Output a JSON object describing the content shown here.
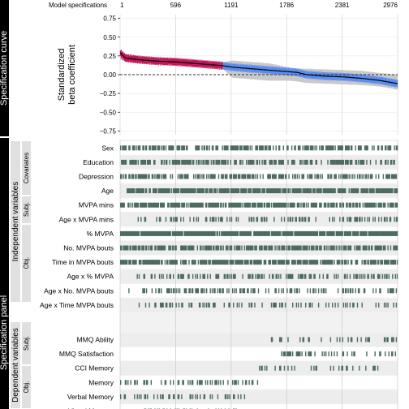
{
  "chart_data": [
    {
      "type": "line",
      "panel_label": "Specification curve",
      "ylabel_lines": [
        "Standardized",
        "beta coefficient"
      ],
      "xaxis_title": "Model specifications",
      "xlim": [
        1,
        2976
      ],
      "ylim": [
        -0.8,
        0.8
      ],
      "x_ticks": [
        1,
        596,
        1191,
        1786,
        2381,
        2976
      ],
      "y_ticks": [
        "0.75",
        "0.50",
        "0.25",
        "0.00",
        "−0.25",
        "−0.50",
        "−0.75"
      ],
      "y_tick_values": [
        0.75,
        0.5,
        0.25,
        0.0,
        -0.25,
        -0.5,
        -0.75
      ],
      "reference_line": 0,
      "reference_style": "dashed",
      "grid": true,
      "colors": {
        "significant_positive": "#c2185b",
        "non_significant": "#5b8def",
        "ci_band": "#bfbfbf",
        "line": "#000000"
      },
      "series": [
        {
          "x": [
            1,
            60,
            200,
            400,
            600,
            800,
            1000,
            1100,
            1200,
            1400,
            1600,
            1800,
            1900,
            2000,
            2200,
            2400,
            2600,
            2800,
            2976
          ],
          "y": [
            0.29,
            0.22,
            0.2,
            0.18,
            0.17,
            0.15,
            0.13,
            0.12,
            0.1,
            0.08,
            0.06,
            0.04,
            0.03,
            0.0,
            -0.02,
            -0.03,
            -0.05,
            -0.08,
            -0.12
          ],
          "ci_lower": [
            0.2,
            0.18,
            0.16,
            0.15,
            0.14,
            0.12,
            0.1,
            0.08,
            -0.04,
            -0.06,
            -0.08,
            -0.08,
            -0.09,
            -0.11,
            -0.12,
            -0.13,
            -0.14,
            -0.16,
            -0.2
          ],
          "ci_upper": [
            0.33,
            0.28,
            0.25,
            0.23,
            0.21,
            0.19,
            0.17,
            0.16,
            0.19,
            0.17,
            0.15,
            0.1,
            0.08,
            0.08,
            0.07,
            0.06,
            0.05,
            0.02,
            0.0
          ],
          "color_segments": [
            {
              "from": 1,
              "to": 1100,
              "status": "significant_positive"
            },
            {
              "from": 1100,
              "to": 2976,
              "status": "non_significant"
            }
          ]
        }
      ]
    },
    {
      "type": "heatmap",
      "panel_label": "Specification panel",
      "groups": [
        {
          "label": "Independent variables"
        },
        {
          "label": "Dependent variables"
        }
      ],
      "subgroups": [
        {
          "label": "Covariates"
        },
        {
          "label": "Subj."
        },
        {
          "label": "Obj."
        },
        {
          "label": "Subj."
        },
        {
          "label": "Obj."
        }
      ],
      "rows": [
        {
          "label": "Sex",
          "group": "Independent variables",
          "subgroup": "Covariates",
          "density": 0.55,
          "ranges": [
            [
              0,
              1
            ]
          ]
        },
        {
          "label": "Education",
          "group": "Independent variables",
          "subgroup": "Covariates",
          "density": 0.55,
          "ranges": [
            [
              0,
              1
            ]
          ]
        },
        {
          "label": "Depression",
          "group": "Independent variables",
          "subgroup": "Covariates",
          "density": 0.6,
          "ranges": [
            [
              0,
              1
            ]
          ]
        },
        {
          "label": "Age",
          "group": "Independent variables",
          "subgroup": "Covariates",
          "density": 0.85,
          "ranges": [
            [
              0.02,
              1
            ]
          ]
        },
        {
          "label": "MVPA mins",
          "group": "Independent variables",
          "subgroup": "Subj.",
          "density": 0.75,
          "ranges": [
            [
              0,
              1
            ]
          ]
        },
        {
          "label": "Age x MVPA mins",
          "group": "Independent variables",
          "subgroup": "Subj.",
          "density": 0.3,
          "ranges": [
            [
              0.05,
              1
            ]
          ]
        },
        {
          "label": "% MVPA",
          "group": "Independent variables",
          "subgroup": "Obj.",
          "density": 0.95,
          "ranges": [
            [
              0,
              1
            ]
          ]
        },
        {
          "label": "No. MVPA bouts",
          "group": "Independent variables",
          "subgroup": "Obj.",
          "density": 0.7,
          "ranges": [
            [
              0,
              1
            ]
          ]
        },
        {
          "label": "Time in MVPA bouts",
          "group": "Independent variables",
          "subgroup": "Obj.",
          "density": 0.75,
          "ranges": [
            [
              0,
              1
            ]
          ]
        },
        {
          "label": "Age x % MVPA",
          "group": "Independent variables",
          "subgroup": "Obj.",
          "density": 0.4,
          "ranges": [
            [
              0.05,
              1
            ]
          ]
        },
        {
          "label": "Age x No. MVPA bouts",
          "group": "Independent variables",
          "subgroup": "Obj.",
          "density": 0.4,
          "ranges": [
            [
              0.03,
              1
            ]
          ]
        },
        {
          "label": "Age x Time MVPA bouts",
          "group": "Independent variables",
          "subgroup": "Obj.",
          "density": 0.3,
          "ranges": [
            [
              0.06,
              1
            ]
          ]
        },
        {
          "label": "",
          "group": "spacer",
          "density": 0,
          "ranges": []
        },
        {
          "label": "MMQ Ability",
          "group": "Dependent variables",
          "subgroup": "Subj.",
          "density": 0.25,
          "ranges": [
            [
              0.54,
              0.61
            ],
            [
              0.64,
              1
            ]
          ]
        },
        {
          "label": "MMQ Satisfaction",
          "group": "Dependent variables",
          "subgroup": "Subj.",
          "density": 0.3,
          "ranges": [
            [
              0.58,
              1
            ]
          ]
        },
        {
          "label": "CCI Memory",
          "group": "Dependent variables",
          "subgroup": "Subj.",
          "density": 0.2,
          "ranges": [
            [
              0.49,
              0.63
            ],
            [
              0.66,
              0.93
            ]
          ]
        },
        {
          "label": "Memory",
          "group": "Dependent variables",
          "subgroup": "Obj.",
          "density": 0.35,
          "ranges": [
            [
              0,
              0.5
            ]
          ]
        },
        {
          "label": "Verbal Memory",
          "group": "Dependent variables",
          "subgroup": "Obj.",
          "density": 0.3,
          "ranges": [
            [
              0,
              0.45
            ]
          ]
        },
        {
          "label": "Visual Memory",
          "group": "Dependent variables",
          "subgroup": "Obj.",
          "density": 0.25,
          "ranges": [
            [
              0.05,
              0.43
            ]
          ]
        }
      ],
      "mark_color": "#4d6b5e"
    }
  ]
}
